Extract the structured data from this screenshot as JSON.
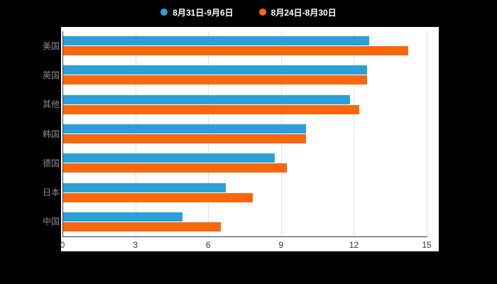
{
  "legend": {
    "items": [
      {
        "label": "8月31日-9月6日",
        "color": "#2BA0D8"
      },
      {
        "label": "8月24日-8月30日",
        "color": "#F9670D"
      }
    ]
  },
  "chart_data": {
    "type": "bar",
    "orientation": "horizontal",
    "title": "",
    "xlabel": "",
    "ylabel": "",
    "categories": [
      "美国",
      "英国",
      "其他",
      "韩国",
      "德国",
      "日本",
      "中国"
    ],
    "series": [
      {
        "name": "8月31日-9月6日",
        "color": "#2BA0D8",
        "values": [
          12.6,
          12.5,
          11.8,
          10.0,
          8.7,
          6.7,
          4.9
        ]
      },
      {
        "name": "8月24日-8月30日",
        "color": "#F9670D",
        "values": [
          14.2,
          12.5,
          12.2,
          10.0,
          9.2,
          7.8,
          6.5
        ]
      }
    ],
    "xlim": [
      0,
      15
    ],
    "xticks": [
      0,
      3,
      6,
      9,
      12,
      15
    ],
    "grid": true,
    "legend_position": "top",
    "plot_background": "#ffffff",
    "page_background": "#000000"
  }
}
